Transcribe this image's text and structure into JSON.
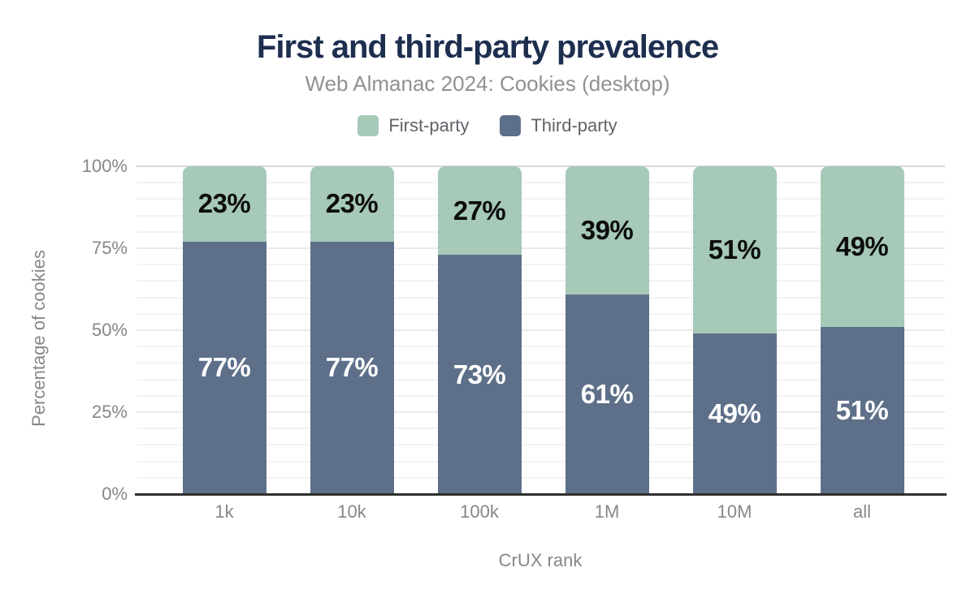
{
  "chart_data": {
    "type": "bar",
    "stacked": true,
    "title": "First and third-party prevalence",
    "subtitle": "Web Almanac 2024: Cookies (desktop)",
    "xlabel": "CrUX rank",
    "ylabel": "Percentage of cookies",
    "categories": [
      "1k",
      "10k",
      "100k",
      "1M",
      "10M",
      "all"
    ],
    "series": [
      {
        "name": "First-party",
        "color": "#a6c9b8",
        "label_color": "#0d0d0d",
        "values": [
          23,
          23,
          27,
          39,
          51,
          49
        ]
      },
      {
        "name": "Third-party",
        "color": "#5e7089",
        "label_color": "#ffffff",
        "values": [
          77,
          77,
          73,
          61,
          49,
          51
        ]
      }
    ],
    "value_suffix": "%",
    "y_axis": {
      "min": 0,
      "max": 100,
      "ticks": [
        0,
        25,
        50,
        75,
        100
      ],
      "tick_labels": [
        "0%",
        "25%",
        "50%",
        "75%",
        "100%"
      ],
      "grid_interval": 5
    },
    "legend_position": "top",
    "grid": "horizontal",
    "colors": {
      "title": "#1e2e4f",
      "subtitle": "#8f9194",
      "axis_text": "#85878a",
      "legend_text": "#5f6368",
      "grid_minor": "#f3f3f3",
      "grid_major": "#eaeaea",
      "grid_top": "#d8d8d8",
      "baseline": "#2f2f2f",
      "background": "#ffffff"
    }
  }
}
